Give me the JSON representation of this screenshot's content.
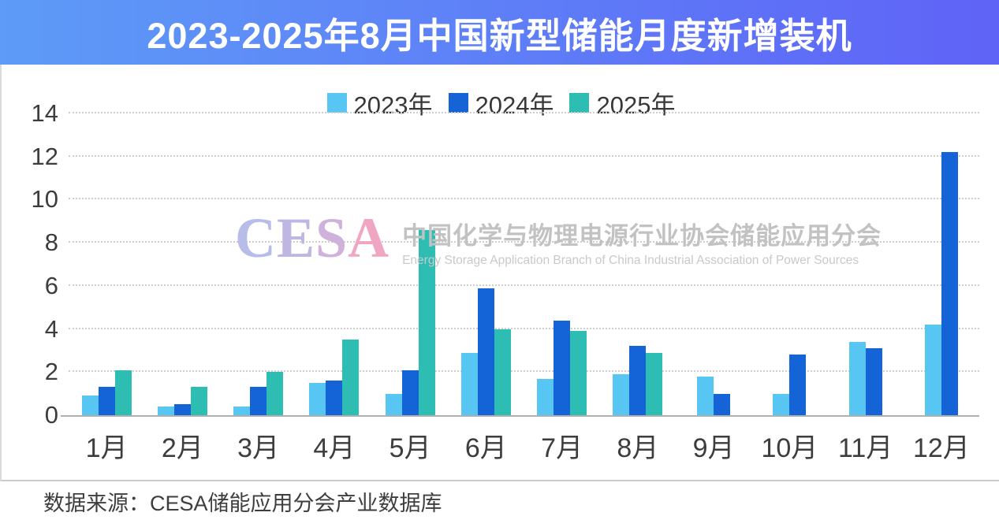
{
  "title": "2023-2025年8月中国新型储能月度新增装机",
  "colors": {
    "title_gradient_left": "#5d9bf7",
    "title_gradient_right": "#5f63f7",
    "grid": "#cdcdcd",
    "axis": "#b0b0b0"
  },
  "watermark": {
    "logo_letters": [
      {
        "ch": "C",
        "color": "#b7bce8"
      },
      {
        "ch": "E",
        "color": "#c0b6e2"
      },
      {
        "ch": "S",
        "color": "#cfb2dc"
      },
      {
        "ch": "A",
        "color": "#f0a6c2"
      }
    ],
    "cn_text": "中国化学与物理电源行业协会储能应用分会",
    "en_text": "Energy Storage Application Branch of China Industrial Association of Power Sources"
  },
  "source_note": "数据来源：CESA储能应用分会产业数据库",
  "chart_data": {
    "type": "bar",
    "title": "2023-2025年8月中国新型储能月度新增装机",
    "categories": [
      "1月",
      "2月",
      "3月",
      "4月",
      "5月",
      "6月",
      "7月",
      "8月",
      "9月",
      "10月",
      "11月",
      "12月"
    ],
    "series": [
      {
        "name": "2023年",
        "color": "#57c6f2",
        "values": [
          0.9,
          0.4,
          0.4,
          1.5,
          1.0,
          2.9,
          1.7,
          1.9,
          1.8,
          1.0,
          3.4,
          4.2
        ]
      },
      {
        "name": "2024年",
        "color": "#1464d8",
        "values": [
          1.3,
          0.5,
          1.3,
          1.6,
          2.1,
          5.9,
          4.4,
          3.2,
          1.0,
          2.8,
          3.1,
          12.2
        ]
      },
      {
        "name": "2025年",
        "color": "#2ebdb2",
        "values": [
          2.1,
          1.3,
          2.0,
          3.5,
          8.6,
          4.0,
          3.9,
          2.9,
          null,
          null,
          null,
          null
        ]
      }
    ],
    "ylim": [
      0,
      14
    ],
    "yticks": [
      0,
      2,
      4,
      6,
      8,
      10,
      12,
      14
    ],
    "grid": true,
    "legend_position": "top",
    "xlabel": "",
    "ylabel": ""
  }
}
